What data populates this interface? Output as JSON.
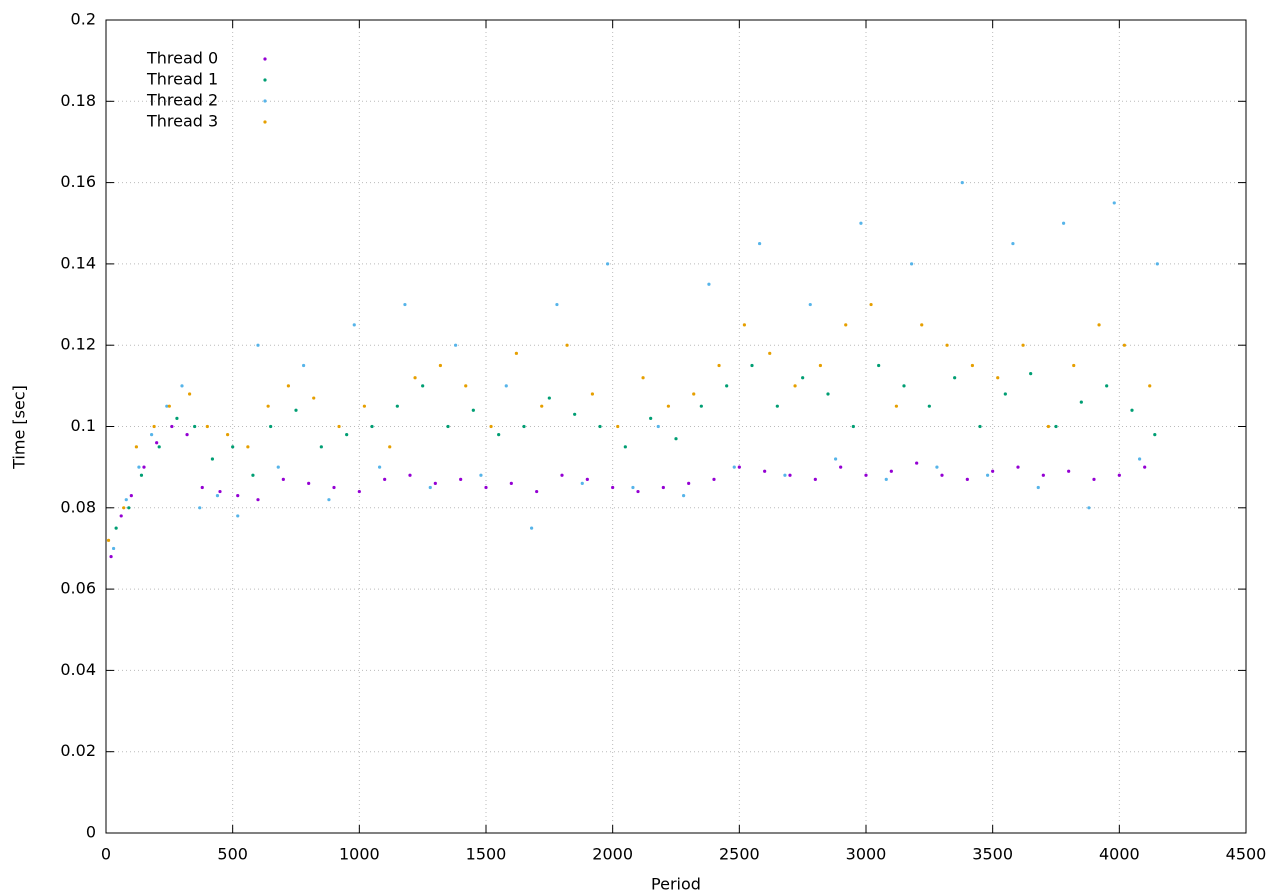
{
  "chart_data": {
    "type": "scatter",
    "xlabel": "Period",
    "ylabel": "Time [sec]",
    "xlim": [
      0,
      4500
    ],
    "ylim": [
      0,
      0.2
    ],
    "xticks": [
      0,
      500,
      1000,
      1500,
      2000,
      2500,
      3000,
      3500,
      4000,
      4500
    ],
    "yticks": [
      0,
      0.02,
      0.04,
      0.06,
      0.08,
      0.1,
      0.12,
      0.14,
      0.16,
      0.18,
      0.2
    ],
    "grid": true,
    "legend": "top-left",
    "series": [
      {
        "name": "Thread 0",
        "color": "#9400d3",
        "x": [
          20,
          60,
          100,
          150,
          200,
          260,
          320,
          380,
          450,
          520,
          600,
          700,
          800,
          900,
          1000,
          1100,
          1200,
          1300,
          1400,
          1500,
          1600,
          1700,
          1800,
          1900,
          2000,
          2100,
          2200,
          2300,
          2400,
          2500,
          2600,
          2700,
          2800,
          2900,
          3000,
          3100,
          3200,
          3300,
          3400,
          3500,
          3600,
          3700,
          3800,
          3900,
          4000,
          4100
        ],
        "values": [
          0.068,
          0.078,
          0.083,
          0.09,
          0.096,
          0.1,
          0.098,
          0.085,
          0.084,
          0.083,
          0.082,
          0.087,
          0.086,
          0.085,
          0.084,
          0.087,
          0.088,
          0.086,
          0.087,
          0.085,
          0.086,
          0.084,
          0.088,
          0.087,
          0.085,
          0.084,
          0.085,
          0.086,
          0.087,
          0.09,
          0.089,
          0.088,
          0.087,
          0.09,
          0.088,
          0.089,
          0.091,
          0.088,
          0.087,
          0.089,
          0.09,
          0.088,
          0.089,
          0.087,
          0.088,
          0.09
        ]
      },
      {
        "name": "Thread 1",
        "color": "#009e73",
        "x": [
          40,
          90,
          140,
          210,
          280,
          350,
          420,
          500,
          580,
          650,
          750,
          850,
          950,
          1050,
          1150,
          1250,
          1350,
          1450,
          1550,
          1650,
          1750,
          1850,
          1950,
          2050,
          2150,
          2250,
          2350,
          2450,
          2550,
          2650,
          2750,
          2850,
          2950,
          3050,
          3150,
          3250,
          3350,
          3450,
          3550,
          3650,
          3750,
          3850,
          3950,
          4050,
          4140
        ],
        "values": [
          0.075,
          0.08,
          0.088,
          0.095,
          0.102,
          0.1,
          0.092,
          0.095,
          0.088,
          0.1,
          0.104,
          0.095,
          0.098,
          0.1,
          0.105,
          0.11,
          0.1,
          0.104,
          0.098,
          0.1,
          0.107,
          0.103,
          0.1,
          0.095,
          0.102,
          0.097,
          0.105,
          0.11,
          0.115,
          0.105,
          0.112,
          0.108,
          0.1,
          0.115,
          0.11,
          0.105,
          0.112,
          0.1,
          0.108,
          0.113,
          0.1,
          0.106,
          0.11,
          0.104,
          0.098
        ]
      },
      {
        "name": "Thread 2",
        "color": "#56b4e9",
        "x": [
          30,
          80,
          130,
          180,
          240,
          300,
          370,
          440,
          520,
          600,
          680,
          780,
          880,
          980,
          1080,
          1180,
          1280,
          1380,
          1480,
          1580,
          1680,
          1780,
          1880,
          1980,
          2080,
          2180,
          2280,
          2380,
          2480,
          2580,
          2680,
          2780,
          2880,
          2980,
          3080,
          3180,
          3280,
          3380,
          3480,
          3580,
          3680,
          3780,
          3880,
          3980,
          4080,
          4150
        ],
        "values": [
          0.07,
          0.082,
          0.09,
          0.098,
          0.105,
          0.11,
          0.08,
          0.083,
          0.078,
          0.12,
          0.09,
          0.115,
          0.082,
          0.125,
          0.09,
          0.13,
          0.085,
          0.12,
          0.088,
          0.11,
          0.075,
          0.13,
          0.086,
          0.14,
          0.085,
          0.1,
          0.083,
          0.135,
          0.09,
          0.145,
          0.088,
          0.13,
          0.092,
          0.15,
          0.087,
          0.14,
          0.09,
          0.16,
          0.088,
          0.145,
          0.085,
          0.15,
          0.08,
          0.155,
          0.092,
          0.14
        ]
      },
      {
        "name": "Thread 3",
        "color": "#e69f00",
        "x": [
          10,
          70,
          120,
          190,
          250,
          330,
          400,
          480,
          560,
          640,
          720,
          820,
          920,
          1020,
          1120,
          1220,
          1320,
          1420,
          1520,
          1620,
          1720,
          1820,
          1920,
          2020,
          2120,
          2220,
          2320,
          2420,
          2520,
          2620,
          2720,
          2820,
          2920,
          3020,
          3120,
          3220,
          3320,
          3420,
          3520,
          3620,
          3720,
          3820,
          3920,
          4020,
          4120
        ],
        "values": [
          0.072,
          0.08,
          0.095,
          0.1,
          0.105,
          0.108,
          0.1,
          0.098,
          0.095,
          0.105,
          0.11,
          0.107,
          0.1,
          0.105,
          0.095,
          0.112,
          0.115,
          0.11,
          0.1,
          0.118,
          0.105,
          0.12,
          0.108,
          0.1,
          0.112,
          0.105,
          0.108,
          0.115,
          0.125,
          0.118,
          0.11,
          0.115,
          0.125,
          0.13,
          0.105,
          0.125,
          0.12,
          0.115,
          0.112,
          0.12,
          0.1,
          0.115,
          0.125,
          0.12,
          0.11
        ]
      }
    ]
  }
}
